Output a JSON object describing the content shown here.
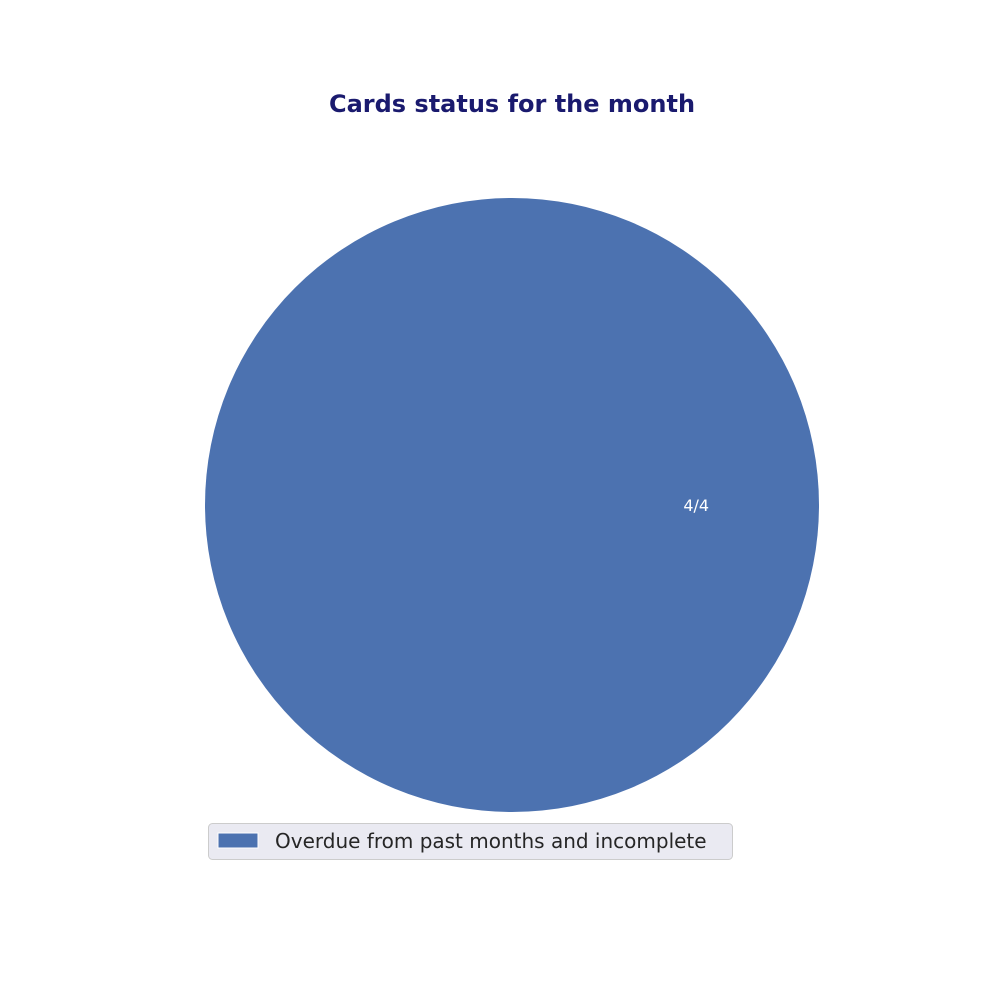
{
  "chart_data": {
    "type": "pie",
    "title": "Cards status for the month",
    "slices": [
      {
        "label": "Overdue from past months and incomplete",
        "value": 4,
        "display_label": "4/4",
        "color": "#4c72b0"
      }
    ],
    "legend": {
      "placement": "bottom",
      "entries": [
        "Overdue from past months and incomplete"
      ]
    },
    "colors": {
      "title": "#1a1a6e",
      "legend_background": "#eaeaf2",
      "legend_border": "#cccccc"
    }
  }
}
